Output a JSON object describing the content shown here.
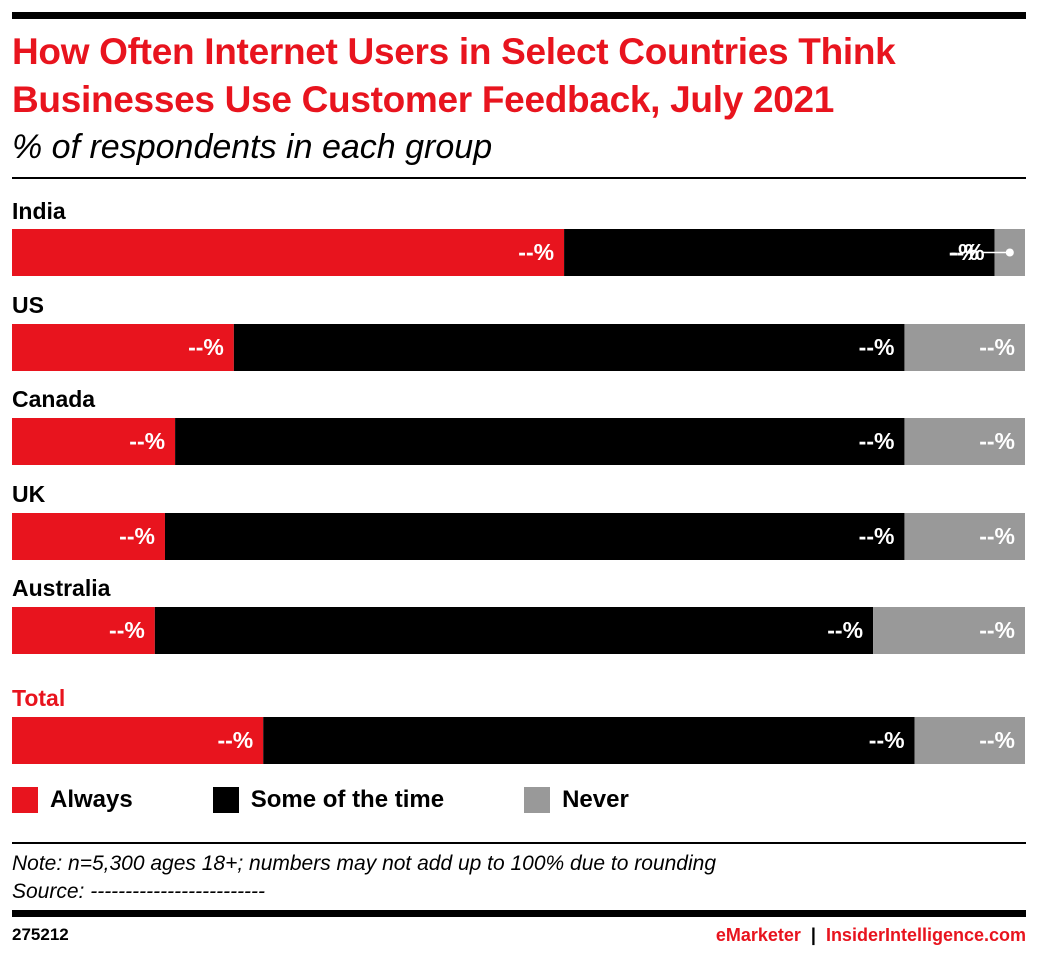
{
  "header": {
    "title": "How Often Internet Users in Select Countries Think Businesses Use Customer Feedback, July 2021",
    "subtitle": "% of respondents in each group"
  },
  "colors": {
    "always": "#e8141e",
    "some_of_the_time": "#000000",
    "never": "#999999",
    "total_label": "#e8141e"
  },
  "chart_data": {
    "type": "bar",
    "orientation": "horizontal",
    "stacked": true,
    "normalized": true,
    "categories": [
      "India",
      "US",
      "Canada",
      "UK",
      "Australia",
      "Total"
    ],
    "series": [
      {
        "name": "Always",
        "values": [
          54.5,
          21.9,
          16.1,
          15.1,
          14.1,
          24.8
        ],
        "labels": [
          "--%",
          "--%",
          "--%",
          "--%",
          "--%",
          "--%"
        ]
      },
      {
        "name": "Some of the time",
        "values": [
          42.5,
          66.2,
          72.0,
          73.0,
          70.9,
          64.3
        ],
        "labels": [
          "--%",
          "--%",
          "--%",
          "--%",
          "--%",
          "--%"
        ]
      },
      {
        "name": "Never",
        "values": [
          3.0,
          11.9,
          11.9,
          11.9,
          15.0,
          10.9
        ],
        "labels": [
          "-%",
          "--%",
          "--%",
          "--%",
          "--%",
          "--%"
        ]
      }
    ],
    "xlim": [
      0,
      100
    ],
    "legend": "bottom",
    "grid": false
  },
  "legend": {
    "items": [
      "Always",
      "Some of the time",
      "Never"
    ]
  },
  "footer": {
    "note": "Note: n=5,300 ages 18+; numbers may not add up to 100% due to rounding",
    "source": "Source: -------------------------",
    "chart_id": "275212",
    "brand_left": "eMarketer",
    "brand_sep": "|",
    "brand_right": "InsiderIntelligence.com"
  }
}
